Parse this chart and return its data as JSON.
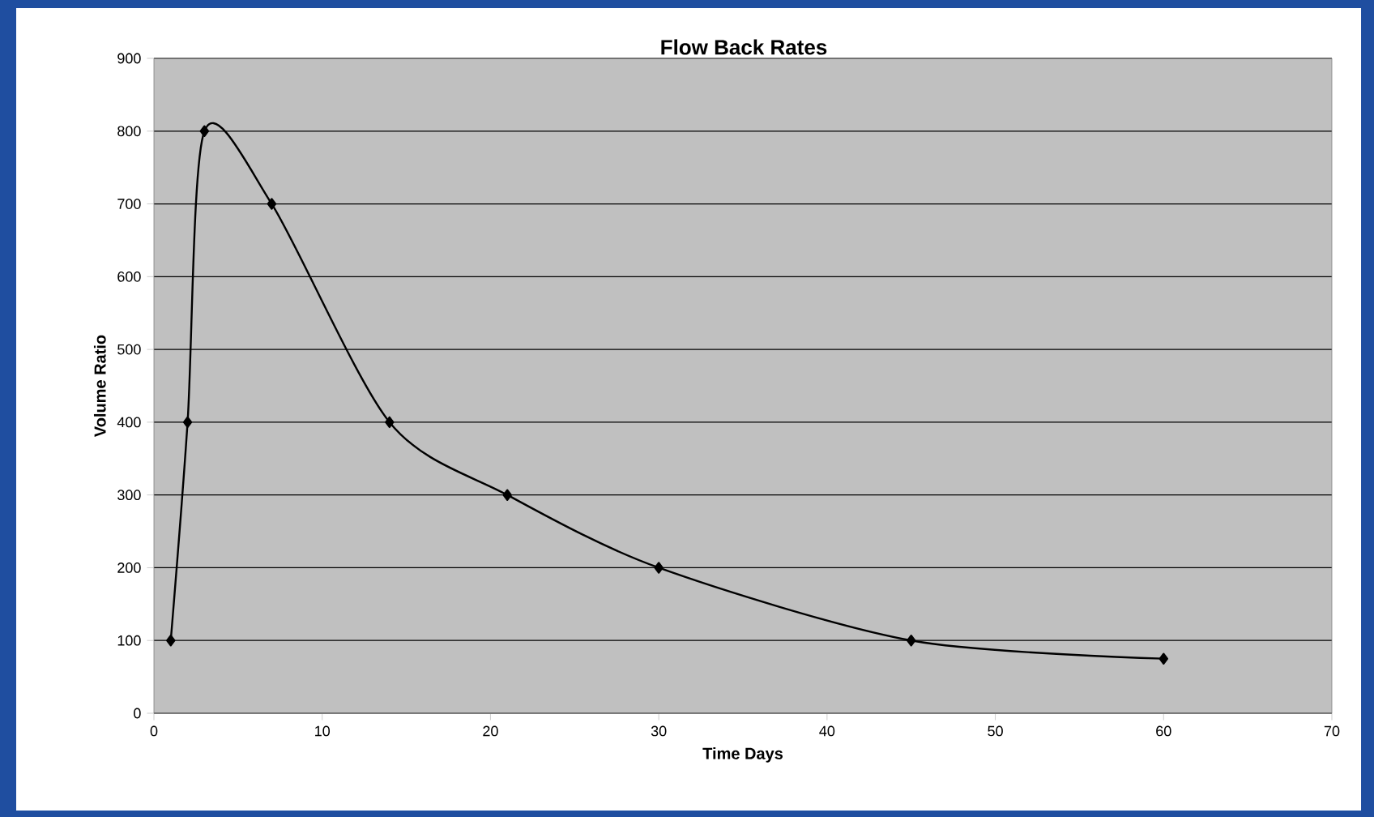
{
  "chart_data": {
    "type": "line",
    "title": "Flow Back Rates",
    "xlabel": "Time Days",
    "ylabel": "Volume Ratio",
    "x": [
      1,
      2,
      3,
      7,
      14,
      21,
      30,
      45,
      60
    ],
    "values": [
      100,
      400,
      800,
      700,
      400,
      300,
      200,
      100,
      75
    ],
    "color": "#000000",
    "marker": "diamond",
    "line_style": "solid",
    "grid": "y",
    "xlim": [
      0,
      70
    ],
    "xticks": [
      0,
      10,
      20,
      30,
      40,
      50,
      60,
      70
    ],
    "ylim": [
      0,
      900
    ],
    "yticks": [
      0,
      100,
      200,
      300,
      400,
      500,
      600,
      700,
      800,
      900
    ]
  }
}
